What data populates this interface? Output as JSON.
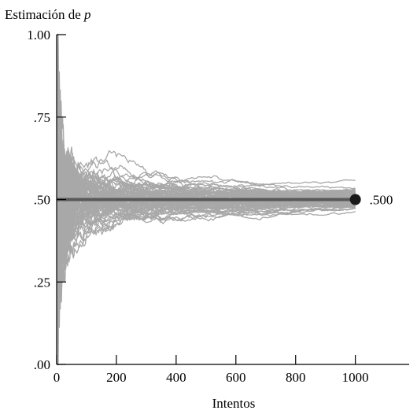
{
  "chart_data": {
    "type": "line",
    "title": "",
    "ylabel_prefix": "Estimación de ",
    "ylabel_var": "p",
    "xlabel": "Intentos",
    "xlim": [
      0,
      1180
    ],
    "ylim": [
      0,
      1
    ],
    "x_ticks": [
      0,
      200,
      400,
      600,
      800,
      1000
    ],
    "x_tick_labels": [
      "0",
      "200",
      "400",
      "600",
      "800",
      "1000"
    ],
    "y_ticks": [
      0,
      0.25,
      0.5,
      0.75,
      1.0
    ],
    "y_tick_labels": [
      ".00",
      ".25",
      ".50",
      ".75",
      "1.00"
    ],
    "grid": false,
    "reference_line": {
      "y": 0.5
    },
    "endpoint": {
      "x": 1000,
      "y": 0.5,
      "label": ".500"
    },
    "simulation": {
      "trials": 1000,
      "true_p": 0.5
    },
    "colors": {
      "paths": "#a8a8a8",
      "reference": "#595959",
      "endpoint": "#1a1a1a",
      "axis": "#000000"
    }
  }
}
